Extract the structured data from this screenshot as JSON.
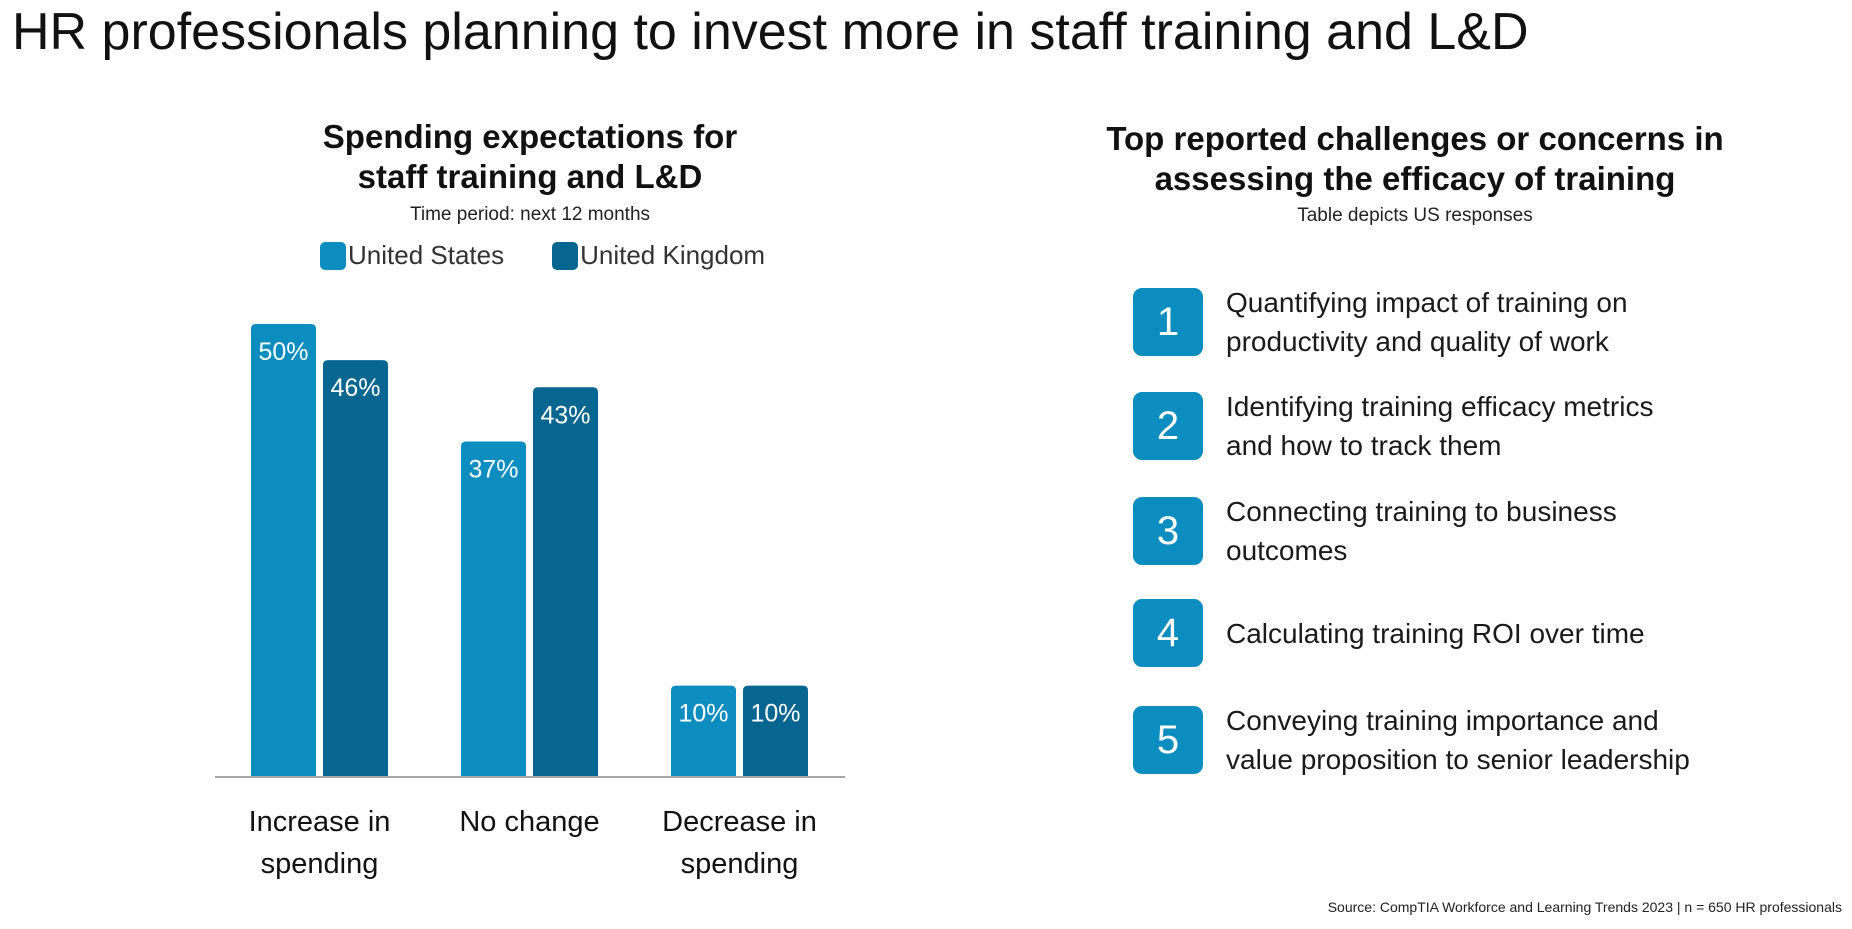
{
  "page_title": "HR professionals planning to invest more in staff training and L&D",
  "chart_data": {
    "type": "bar",
    "title_line1": "Spending expectations for",
    "title_line2": "staff training and L&D",
    "subtitle": "Time period: next 12 months",
    "categories": [
      [
        "Increase in",
        "spending"
      ],
      [
        "No change"
      ],
      [
        "Decrease in",
        "spending"
      ]
    ],
    "series": [
      {
        "name": "United States",
        "color": "#0B8DBF",
        "values": [
          50,
          37,
          10
        ],
        "labels": [
          "50%",
          "37%",
          "10%"
        ]
      },
      {
        "name": "United Kingdom",
        "color": "#066690",
        "values": [
          46,
          43,
          10
        ],
        "labels": [
          "46%",
          "43%",
          "10%"
        ]
      }
    ],
    "ylim": [
      0,
      50
    ],
    "legend_position": "top",
    "grid": false
  },
  "challenges": {
    "title_line1": "Top reported challenges or concerns in",
    "title_line2": "assessing the efficacy of training",
    "subtitle": "Table depicts US responses",
    "items": [
      {
        "rank": "1",
        "line1": "Quantifying impact of training on",
        "line2": "productivity and quality of work"
      },
      {
        "rank": "2",
        "line1": "Identifying training efficacy metrics",
        "line2": "and how to track them"
      },
      {
        "rank": "3",
        "line1": "Connecting training to business",
        "line2": "outcomes"
      },
      {
        "rank": "4",
        "line1": "Calculating training ROI over time",
        "line2": ""
      },
      {
        "rank": "5",
        "line1": "Conveying training importance and",
        "line2": "value proposition to senior leadership"
      }
    ]
  },
  "source": "Source: CompTIA Workforce and Learning Trends 2023 | n = 650 HR professionals"
}
